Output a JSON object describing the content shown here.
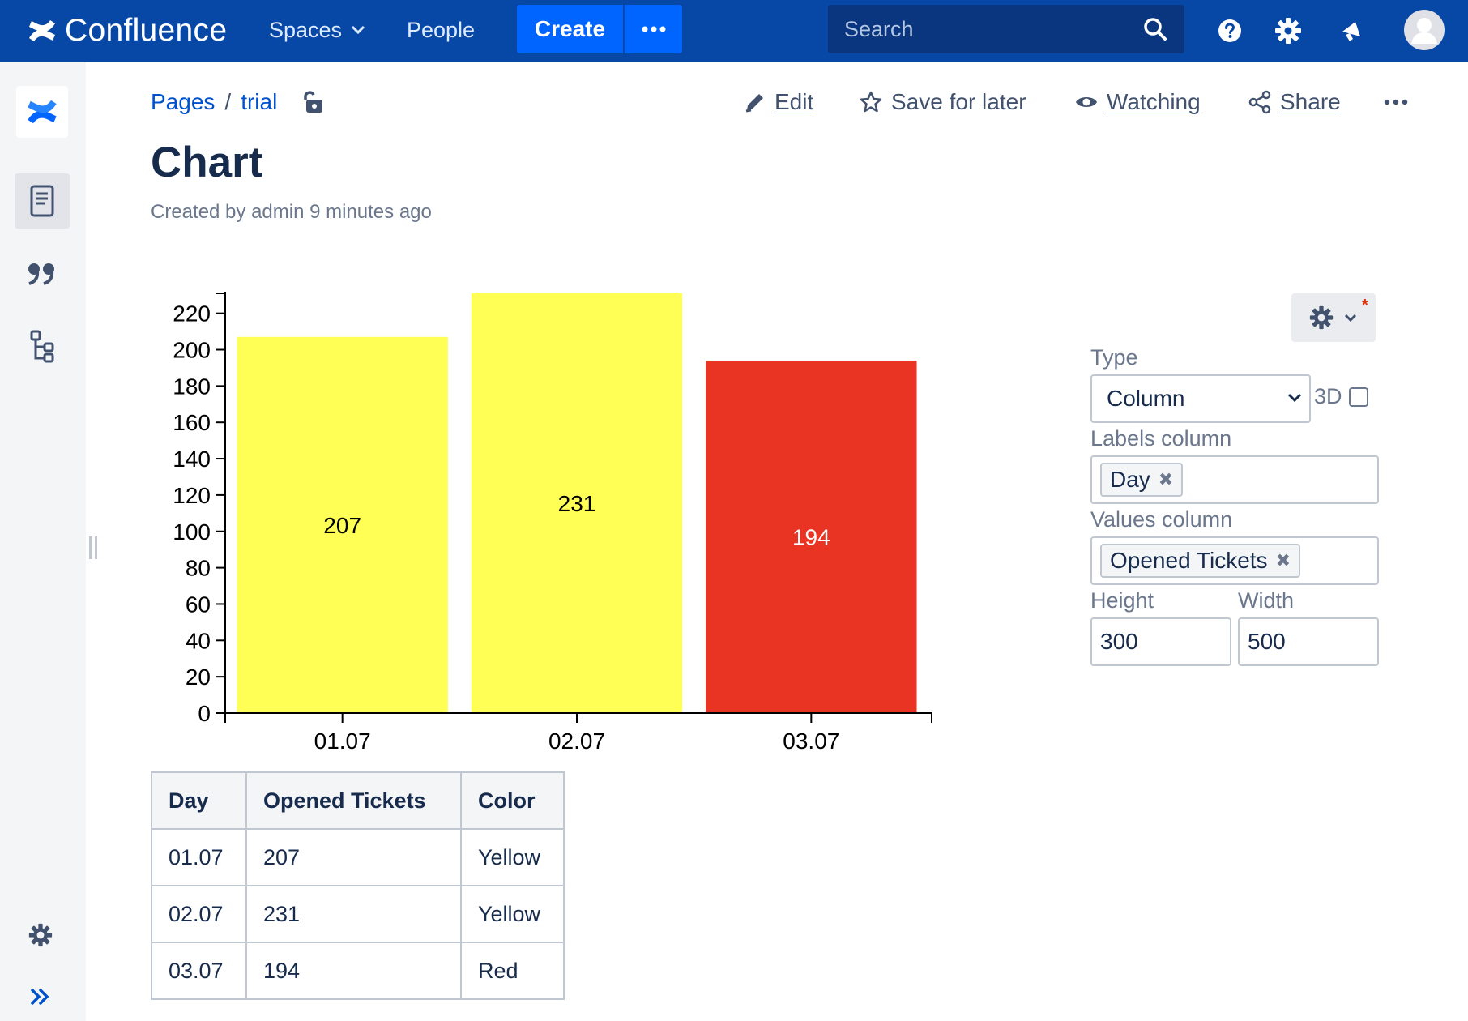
{
  "topnav": {
    "brand": "Confluence",
    "spaces_label": "Spaces",
    "people_label": "People",
    "create_label": "Create",
    "search_placeholder": "Search",
    "bg_color": "#0747a6",
    "accent_color": "#0065ff"
  },
  "page": {
    "breadcrumb": [
      "Pages",
      "trial"
    ],
    "title": "Chart",
    "byline": "Created by admin 9 minutes ago",
    "actions": {
      "edit": "Edit",
      "save_for_later": "Save for later",
      "watching": "Watching",
      "share": "Share"
    }
  },
  "chart_data": {
    "type": "bar",
    "categories": [
      "01.07",
      "02.07",
      "03.07"
    ],
    "values": [
      207,
      231,
      194
    ],
    "colors": [
      "#ffff55",
      "#ffff55",
      "#e93423"
    ],
    "ylim": [
      0,
      231
    ],
    "yticks": [
      0,
      20,
      40,
      60,
      80,
      100,
      120,
      140,
      160,
      180,
      200,
      220
    ],
    "grid": false,
    "title": "",
    "xlabel": "",
    "ylabel": ""
  },
  "table": {
    "headers": [
      "Day",
      "Opened Tickets",
      "Color"
    ],
    "rows": [
      [
        "01.07",
        "207",
        "Yellow"
      ],
      [
        "02.07",
        "231",
        "Yellow"
      ],
      [
        "03.07",
        "194",
        "Red"
      ]
    ]
  },
  "chart_settings": {
    "type_label": "Type",
    "type_value": "Column",
    "three_d_label": "3D",
    "three_d_checked": false,
    "labels_column_label": "Labels column",
    "labels_column_value": "Day",
    "values_column_label": "Values column",
    "values_column_value": "Opened Tickets",
    "height_label": "Height",
    "height_value": "300",
    "width_label": "Width",
    "width_value": "500"
  }
}
